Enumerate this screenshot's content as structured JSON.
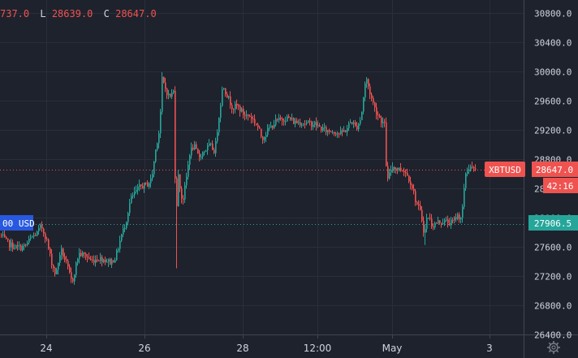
{
  "ohlc_header": {
    "o_value": "737.0",
    "l_label": "L",
    "l_value": "28639.0",
    "c_label": "C",
    "c_value": "28647.0"
  },
  "tags": {
    "symbol": "XBTUSD",
    "last_price": "28647.0",
    "countdown": "42:16",
    "green_price": "27906.5",
    "left_blue": "00 USD"
  },
  "chart_data": {
    "type": "candlestick",
    "y_ticks": [
      "30800.0",
      "30400.0",
      "30000.0",
      "29600.0",
      "29200.0",
      "28800.0",
      "28400.0",
      "28000.0",
      "27600.0",
      "27200.0",
      "26800.0",
      "26400.0"
    ],
    "y_tick_values": [
      30800,
      30400,
      30000,
      29600,
      29200,
      28800,
      28400,
      28000,
      27600,
      27200,
      26800,
      26400
    ],
    "x_ticks": [
      "24",
      "26",
      "28",
      "12:00",
      "May",
      "3"
    ],
    "ylim": [
      26380,
      31070
    ],
    "last_price_level": 28647.0,
    "green_level": 27906.5,
    "colors": {
      "up": "#26a69a",
      "down": "#ef5350",
      "bg": "#1e222d",
      "grid": "#2a2e39",
      "axis_text": "#d1d4dc"
    },
    "anchors": [
      [
        0,
        27760
      ],
      [
        8,
        27650
      ],
      [
        15,
        27600
      ],
      [
        22,
        27580
      ],
      [
        30,
        27600
      ],
      [
        38,
        27720
      ],
      [
        45,
        27780
      ],
      [
        50,
        27880
      ],
      [
        56,
        27720
      ],
      [
        62,
        27420
      ],
      [
        68,
        27200
      ],
      [
        74,
        27560
      ],
      [
        80,
        27400
      ],
      [
        88,
        27100
      ],
      [
        96,
        27500
      ],
      [
        104,
        27480
      ],
      [
        112,
        27400
      ],
      [
        120,
        27440
      ],
      [
        128,
        27420
      ],
      [
        136,
        27380
      ],
      [
        142,
        27460
      ],
      [
        148,
        27720
      ],
      [
        154,
        27920
      ],
      [
        160,
        28240
      ],
      [
        166,
        28340
      ],
      [
        172,
        28420
      ],
      [
        180,
        28440
      ],
      [
        186,
        28520
      ],
      [
        192,
        29000
      ],
      [
        196,
        29220
      ],
      [
        199,
        29880
      ],
      [
        203,
        29760
      ],
      [
        208,
        29640
      ],
      [
        213,
        29720
      ],
      [
        216,
        28000
      ],
      [
        219,
        28560
      ],
      [
        224,
        28200
      ],
      [
        228,
        28460
      ],
      [
        233,
        28880
      ],
      [
        238,
        28980
      ],
      [
        244,
        28820
      ],
      [
        250,
        28900
      ],
      [
        258,
        28980
      ],
      [
        264,
        28900
      ],
      [
        268,
        29300
      ],
      [
        274,
        29820
      ],
      [
        280,
        29640
      ],
      [
        286,
        29500
      ],
      [
        292,
        29520
      ],
      [
        300,
        29400
      ],
      [
        308,
        29380
      ],
      [
        316,
        29260
      ],
      [
        322,
        29080
      ],
      [
        330,
        29200
      ],
      [
        338,
        29300
      ],
      [
        346,
        29340
      ],
      [
        354,
        29360
      ],
      [
        362,
        29300
      ],
      [
        370,
        29300
      ],
      [
        378,
        29280
      ],
      [
        386,
        29280
      ],
      [
        394,
        29220
      ],
      [
        402,
        29180
      ],
      [
        410,
        29180
      ],
      [
        418,
        29140
      ],
      [
        426,
        29200
      ],
      [
        432,
        29320
      ],
      [
        438,
        29220
      ],
      [
        444,
        29360
      ],
      [
        450,
        29920
      ],
      [
        456,
        29660
      ],
      [
        462,
        29460
      ],
      [
        468,
        29340
      ],
      [
        473,
        29260
      ],
      [
        476,
        28460
      ],
      [
        482,
        28700
      ],
      [
        490,
        28660
      ],
      [
        498,
        28640
      ],
      [
        506,
        28460
      ],
      [
        512,
        28200
      ],
      [
        518,
        28040
      ],
      [
        522,
        27760
      ],
      [
        526,
        28040
      ],
      [
        532,
        27880
      ],
      [
        540,
        27940
      ],
      [
        548,
        27940
      ],
      [
        556,
        27920
      ],
      [
        562,
        28020
      ],
      [
        568,
        28000
      ],
      [
        573,
        28600
      ],
      [
        578,
        28700
      ],
      [
        583,
        28640
      ]
    ]
  }
}
